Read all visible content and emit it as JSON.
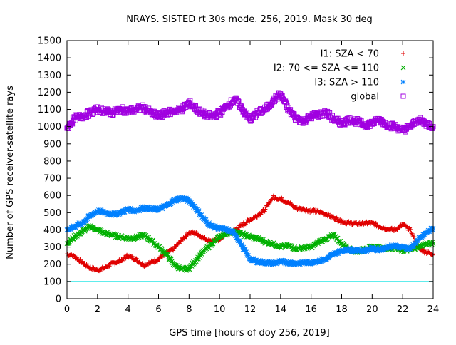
{
  "chart_data": {
    "type": "scatter",
    "title": "NRAYS. SISTED rt 30s mode. 256, 2019. Mask 30 deg",
    "xlabel": "GPS time [hours of doy 256, 2019]",
    "ylabel": "Number of GPS receiver-satellite rays",
    "xlim": [
      0,
      24
    ],
    "ylim": [
      0,
      1500
    ],
    "xticks": [
      "0",
      "2",
      "4",
      "6",
      "8",
      "10",
      "12",
      "14",
      "16",
      "18",
      "20",
      "22",
      "24"
    ],
    "yticks": [
      "0",
      "100",
      "200",
      "300",
      "400",
      "500",
      "600",
      "700",
      "800",
      "900",
      "1000",
      "1100",
      "1200",
      "1300",
      "1400",
      "1500"
    ],
    "grid": false,
    "legend_position": "top-right",
    "reference_line": {
      "y": 100,
      "color": "#00e0e0"
    },
    "series": [
      {
        "name": "I1: SZA < 70",
        "marker": "+",
        "color": "#e00000",
        "x": [
          0,
          0.5,
          1,
          1.5,
          2,
          2.5,
          3,
          3.5,
          4,
          4.5,
          5,
          5.5,
          6,
          6.5,
          7,
          7.5,
          8,
          8.5,
          9,
          9.5,
          10,
          10.5,
          11,
          11.5,
          12,
          12.5,
          13,
          13.5,
          14,
          14.5,
          15,
          15.5,
          16,
          16.5,
          17,
          17.5,
          18,
          18.5,
          19,
          19.5,
          20,
          20.5,
          21,
          21.5,
          22,
          22.5,
          23,
          23.5,
          24
        ],
        "values": [
          260,
          245,
          210,
          180,
          165,
          180,
          205,
          220,
          250,
          230,
          195,
          210,
          230,
          265,
          290,
          340,
          385,
          380,
          350,
          335,
          345,
          380,
          400,
          430,
          460,
          485,
          520,
          590,
          580,
          560,
          525,
          520,
          510,
          505,
          490,
          470,
          450,
          440,
          435,
          440,
          440,
          420,
          405,
          400,
          430,
          400,
          300,
          270,
          260
        ]
      },
      {
        "name": "I2: 70 <= SZA <= 110",
        "marker": "x",
        "color": "#00b000",
        "x": [
          0,
          0.5,
          1,
          1.5,
          2,
          2.5,
          3,
          3.5,
          4,
          4.5,
          5,
          5.5,
          6,
          6.5,
          7,
          7.5,
          8,
          8.5,
          9,
          9.5,
          10,
          10.5,
          11,
          11.5,
          12,
          12.5,
          13,
          13.5,
          14,
          14.5,
          15,
          15.5,
          16,
          16.5,
          17,
          17.5,
          18,
          18.5,
          19,
          19.5,
          20,
          20.5,
          21,
          21.5,
          22,
          22.5,
          23,
          23.5,
          24
        ],
        "values": [
          320,
          360,
          390,
          420,
          400,
          380,
          370,
          360,
          350,
          355,
          370,
          340,
          300,
          260,
          200,
          170,
          175,
          230,
          280,
          320,
          360,
          380,
          390,
          375,
          360,
          350,
          330,
          320,
          300,
          310,
          290,
          295,
          300,
          330,
          350,
          370,
          320,
          290,
          270,
          290,
          300,
          295,
          290,
          295,
          280,
          290,
          300,
          320,
          320
        ]
      },
      {
        "name": "I3: SZA > 110",
        "marker": "*",
        "color": "#0080ff",
        "x": [
          0,
          0.5,
          1,
          1.5,
          2,
          2.5,
          3,
          3.5,
          4,
          4.5,
          5,
          5.5,
          6,
          6.5,
          7,
          7.5,
          8,
          8.5,
          9,
          9.5,
          10,
          10.5,
          11,
          11.5,
          12,
          12.5,
          13,
          13.5,
          14,
          14.5,
          15,
          15.5,
          16,
          16.5,
          17,
          17.5,
          18,
          18.5,
          19,
          19.5,
          20,
          20.5,
          21,
          21.5,
          22,
          22.5,
          23,
          23.5,
          24
        ],
        "values": [
          400,
          420,
          440,
          480,
          510,
          500,
          490,
          500,
          520,
          510,
          530,
          520,
          520,
          540,
          570,
          585,
          570,
          520,
          460,
          420,
          410,
          400,
          380,
          300,
          230,
          215,
          210,
          205,
          215,
          210,
          205,
          210,
          210,
          220,
          230,
          260,
          280,
          285,
          280,
          280,
          290,
          285,
          300,
          305,
          300,
          290,
          340,
          380,
          410
        ]
      },
      {
        "name": "global",
        "marker": "square",
        "color": "#a000e0",
        "x": [
          0,
          0.5,
          1,
          1.5,
          2,
          2.5,
          3,
          3.5,
          4,
          4.5,
          5,
          5.5,
          6,
          6.5,
          7,
          7.5,
          8,
          8.5,
          9,
          9.5,
          10,
          10.5,
          11,
          11.5,
          12,
          12.5,
          13,
          13.5,
          14,
          14.5,
          15,
          15.5,
          16,
          16.5,
          17,
          17.5,
          18,
          18.5,
          19,
          19.5,
          20,
          20.5,
          21,
          21.5,
          22,
          22.5,
          23,
          23.5,
          24
        ],
        "values": [
          990,
          1050,
          1060,
          1080,
          1100,
          1090,
          1080,
          1100,
          1090,
          1100,
          1110,
          1080,
          1060,
          1080,
          1090,
          1100,
          1140,
          1100,
          1070,
          1060,
          1080,
          1120,
          1160,
          1100,
          1040,
          1080,
          1100,
          1150,
          1190,
          1100,
          1050,
          1030,
          1060,
          1070,
          1080,
          1040,
          1020,
          1040,
          1030,
          1010,
          1020,
          1040,
          1010,
          1000,
          980,
          1000,
          1040,
          1020,
          1000
        ]
      }
    ]
  }
}
